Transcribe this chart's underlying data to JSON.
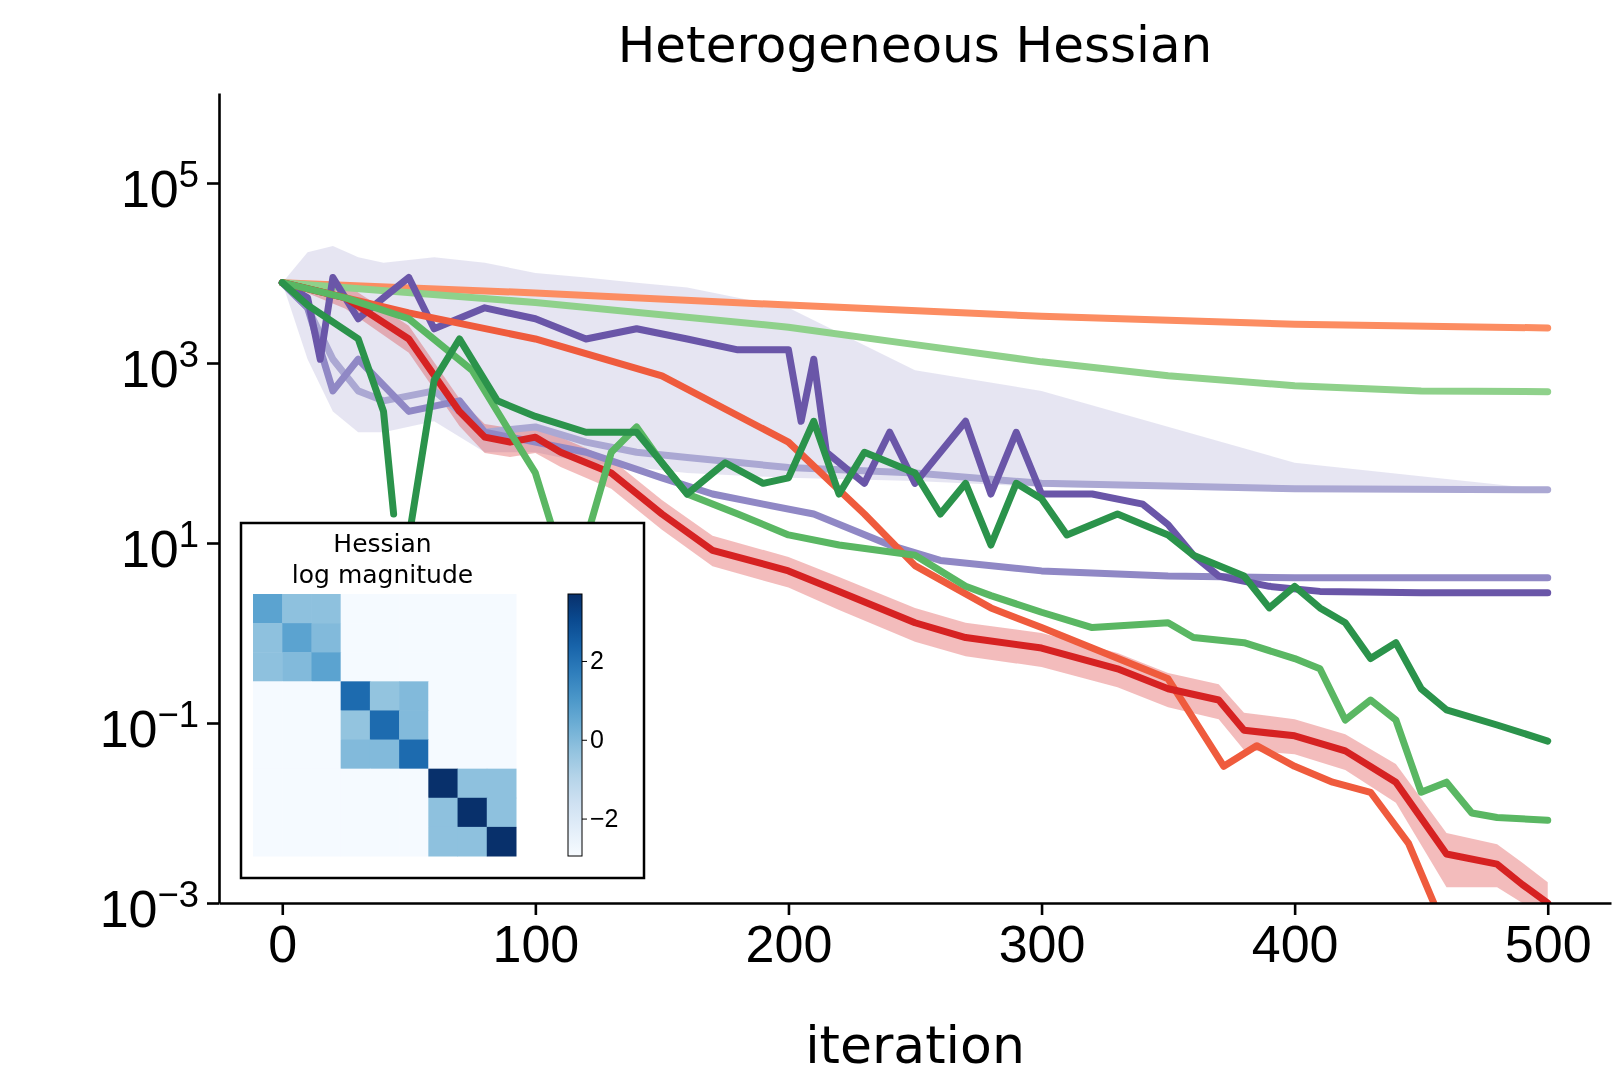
{
  "chart_data": [
    {
      "type": "line",
      "title": "Heterogeneous Hessian",
      "xlabel": "iteration",
      "log": "y",
      "xlim": [
        -25,
        525
      ],
      "xticks": [
        0,
        100,
        200,
        300,
        400,
        500
      ],
      "ylim": [
        0.001,
        1000000
      ],
      "yticks": [
        {
          "value": 0.001,
          "label": "10$^{−3}$"
        },
        {
          "value": 0.1,
          "label": "10$^{−1}$"
        },
        {
          "value": 10,
          "label": "10$^{1}$"
        },
        {
          "value": 1000,
          "label": "10$^{3}$"
        },
        {
          "value": 100000,
          "label": "10$^{5}$"
        }
      ],
      "series": [
        {
          "color": "#aba8d3",
          "x": [
            0,
            10,
            20,
            30,
            40,
            60,
            80,
            100,
            120,
            140,
            160,
            200,
            250,
            300,
            400,
            500
          ],
          "values": [
            7800,
            4100,
            1100,
            490,
            380,
            490,
            170,
            195,
            132,
            102,
            89,
            69,
            60,
            46,
            40,
            39
          ],
          "lower": [
            7800,
            1100,
            290,
            170,
            170,
            225,
            102,
            102,
            78,
            69,
            60,
            53,
            49,
            42,
            38,
            37
          ],
          "upper": [
            7800,
            17000,
            20000,
            15000,
            13000,
            15000,
            13000,
            10000,
            8900,
            7800,
            6900,
            4100,
            830,
            490,
            78,
            39
          ]
        },
        {
          "color": "#fc8d62",
          "x": [
            0,
            100,
            200,
            300,
            400,
            500
          ],
          "values": [
            7800,
            6000,
            4400,
            3300,
            2700,
            2450
          ]
        },
        {
          "color": "#8fd18b",
          "x": [
            0,
            100,
            200,
            250,
            300,
            350,
            400,
            450,
            500
          ],
          "values": [
            7800,
            4700,
            2500,
            1600,
            1030,
            720,
            560,
            490,
            480
          ]
        },
        {
          "color": "#9088c5",
          "x": [
            0,
            10,
            20,
            30,
            50,
            70,
            80,
            100,
            120,
            150,
            170,
            190,
            210,
            240,
            260,
            300,
            350,
            400,
            500
          ],
          "values": [
            7800,
            4100,
            490,
            1100,
            290,
            380,
            170,
            132,
            102,
            53,
            35,
            27,
            21,
            9.5,
            6.4,
            4.9,
            4.3,
            4.1,
            4.1
          ]
        },
        {
          "color": "#6a56a8",
          "x": [
            0,
            10,
            15,
            20,
            30,
            40,
            50,
            60,
            80,
            100,
            120,
            140,
            160,
            180,
            200,
            205,
            210,
            215,
            230,
            240,
            250,
            270,
            280,
            290,
            300,
            320,
            340,
            350,
            360,
            370,
            390,
            410,
            450,
            500
          ],
          "values": [
            7800,
            5300,
            1100,
            8900,
            3100,
            5300,
            8900,
            2400,
            4100,
            3100,
            1850,
            2400,
            1850,
            1400,
            1400,
            225,
            1100,
            102,
            46,
            170,
            46,
            225,
            35,
            170,
            35,
            35,
            27,
            16,
            7.3,
            4.3,
            3.3,
            2.9,
            2.8,
            2.8
          ]
        },
        {
          "color": "#ef5b3d",
          "x": [
            0,
            50,
            100,
            150,
            200,
            230,
            250,
            280,
            300,
            320,
            350,
            372,
            385,
            400,
            415,
            430,
            445,
            455
          ],
          "values": [
            7800,
            3600,
            1850,
            720,
            132,
            21,
            5.6,
            1.9,
            1.15,
            0.68,
            0.31,
            0.033,
            0.056,
            0.033,
            0.022,
            0.017,
            0.0046,
            0.001
          ]
        },
        {
          "color": "#d62222",
          "x": [
            0,
            25,
            50,
            70,
            80,
            90,
            100,
            110,
            130,
            150,
            170,
            200,
            220,
            250,
            270,
            300,
            330,
            350,
            370,
            380,
            400,
            420,
            440,
            460,
            480,
            490,
            500
          ],
          "values": [
            7800,
            5300,
            1850,
            290,
            150,
            132,
            150,
            102,
            60,
            21,
            8.3,
            4.9,
            2.9,
            1.3,
            0.89,
            0.68,
            0.4,
            0.24,
            0.18,
            0.083,
            0.072,
            0.049,
            0.022,
            0.0035,
            0.0027,
            0.0016,
            0.001
          ],
          "lower": [
            7800,
            4000,
            1300,
            200,
            100,
            90,
            100,
            70,
            40,
            14,
            5.5,
            3.2,
            1.8,
            0.8,
            0.55,
            0.42,
            0.25,
            0.15,
            0.11,
            0.05,
            0.045,
            0.03,
            0.013,
            0.0015,
            0.0015,
            0.001,
            0.001
          ],
          "upper": [
            7800,
            7500,
            2600,
            400,
            210,
            190,
            210,
            150,
            85,
            30,
            12,
            7,
            4.2,
            1.9,
            1.3,
            1,
            0.6,
            0.36,
            0.27,
            0.13,
            0.11,
            0.075,
            0.035,
            0.006,
            0.0045,
            0.0028,
            0.0017
          ]
        },
        {
          "color": "#5ab763",
          "x": [
            0,
            25,
            50,
            75,
            90,
            100,
            106,
            110,
            122,
            130,
            140,
            150,
            160,
            180,
            200,
            220,
            250,
            270,
            280,
            300,
            320,
            350,
            360,
            380,
            400,
            410,
            420,
            430,
            440,
            450,
            460,
            470,
            480,
            500
          ],
          "values": [
            7800,
            5300,
            3100,
            830,
            170,
            60,
            17,
            null,
            17,
            102,
            195,
            78,
            35,
            21,
            12.3,
            9.5,
            7.3,
            3.3,
            2.6,
            1.7,
            1.15,
            1.3,
            0.89,
            0.78,
            0.52,
            0.4,
            0.108,
            0.18,
            0.108,
            0.017,
            0.022,
            0.01,
            0.0089,
            0.0083
          ]
        },
        {
          "color": "#2b934b",
          "x": [
            0,
            10,
            30,
            40,
            44,
            46,
            51,
            60,
            70,
            85,
            100,
            120,
            140,
            150,
            160,
            175,
            190,
            200,
            210,
            220,
            230,
            250,
            260,
            270,
            280,
            290,
            300,
            310,
            330,
            350,
            360,
            380,
            390,
            400,
            410,
            420,
            430,
            440,
            450,
            460,
            480,
            500
          ],
          "values": [
            7800,
            4400,
            1850,
            290,
            21,
            null,
            17,
            640,
            1850,
            380,
            255,
            170,
            170,
            78,
            35,
            78,
            46,
            53,
            225,
            35,
            102,
            60,
            21,
            46,
            9.5,
            46,
            31,
            12.3,
            21,
            12.3,
            7.3,
            4.3,
            1.9,
            3.3,
            1.9,
            1.3,
            0.52,
            0.78,
            0.24,
            0.14,
            0.095,
            0.063
          ]
        }
      ]
    },
    {
      "type": "heatmap",
      "title": "Hessian\nlog magnitude",
      "tick_labels": false,
      "categories": [
        null,
        null,
        null,
        null,
        null,
        null,
        null,
        null,
        null
      ],
      "y_categories": [
        null,
        null,
        null,
        null,
        null,
        null,
        null,
        null,
        null
      ],
      "cells": [
        [
          0.7,
          -0.2,
          -0.2,
          -2.9,
          -2.9,
          -2.9,
          -2.9,
          -2.9,
          -2.9
        ],
        [
          -0.2,
          0.7,
          0,
          -2.9,
          -2.9,
          -2.9,
          -2.9,
          -2.9,
          -2.9
        ],
        [
          -0.2,
          0,
          0.7,
          -2.9,
          -2.9,
          -2.9,
          -2.9,
          -2.9,
          -2.9
        ],
        [
          -2.9,
          -2.9,
          -2.9,
          2.2,
          -0.3,
          0,
          -2.9,
          -2.9,
          -2.9
        ],
        [
          -2.9,
          -2.9,
          -2.9,
          -0.3,
          2.2,
          0,
          -2.9,
          -2.9,
          -2.9
        ],
        [
          -2.9,
          -2.9,
          -2.9,
          0,
          0,
          2.2,
          -2.9,
          -2.9,
          -2.9
        ],
        [
          -2.9,
          -2.9,
          -2.9,
          -2.9,
          -2.9,
          -2.9,
          3.7,
          -0.2,
          -0.2
        ],
        [
          -2.9,
          -2.9,
          -2.9,
          -2.9,
          -2.9,
          -2.9,
          -0.2,
          3.7,
          -0.2
        ],
        [
          -2.9,
          -2.9,
          -2.9,
          -2.9,
          -2.9,
          -2.9,
          -0.2,
          -0.2,
          3.7
        ]
      ],
      "clim": [
        -2.95,
        3.7
      ],
      "cticks": [
        {
          "value": -2,
          "label": "−2"
        },
        0,
        2
      ]
    }
  ]
}
